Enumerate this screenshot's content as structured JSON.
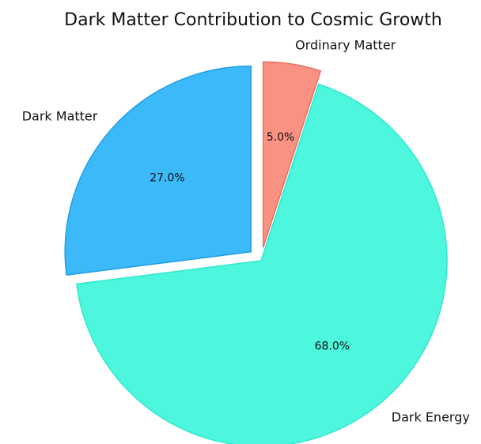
{
  "chart_data": {
    "type": "pie",
    "title": "Dark Matter Contribution to Cosmic Growth",
    "categories": [
      "Dark Matter",
      "Dark Energy",
      "Ordinary Matter"
    ],
    "values": [
      27.0,
      68.0,
      5.0
    ],
    "value_labels": [
      "27.0%",
      "68.0%",
      "5.0%"
    ],
    "colors": [
      "#3cb9f8",
      "#4df7de",
      "#fa9283"
    ],
    "edge_colors": [
      "#1e9de8",
      "#2fe8cf",
      "#e8705f"
    ],
    "exploded": [
      true,
      false,
      true
    ],
    "start_angle_deg": 90,
    "direction": "counterclockwise"
  }
}
